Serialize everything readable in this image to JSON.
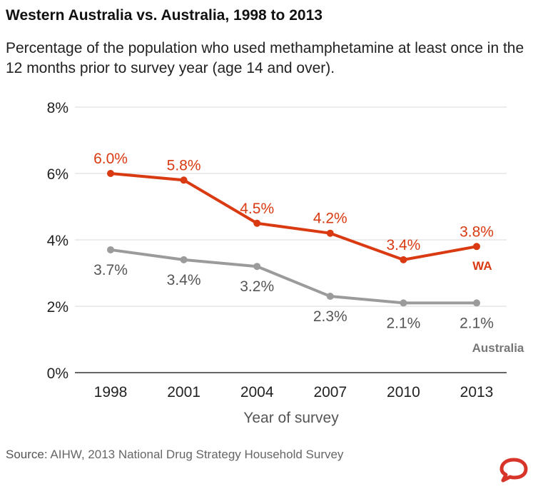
{
  "title": "Western Australia vs. Australia, 1998 to 2013",
  "subtitle": "Percentage of the population who used methamphetamine at least once in the 12 months prior to survey year (age 14 and over).",
  "source": {
    "label": "Source:",
    "text": "AIHW, 2013 National Drug Strategy Household Survey"
  },
  "chart_data": {
    "type": "line",
    "title": "Western Australia vs. Australia, 1998 to 2013",
    "subtitle": "Percentage of the population who used methamphetamine at least once in the 12 months prior to survey year (age 14 and over).",
    "xlabel": "Year of survey",
    "ylabel": "",
    "categories": [
      "1998",
      "2001",
      "2004",
      "2007",
      "2010",
      "2013"
    ],
    "ylim": [
      0,
      8
    ],
    "yticks": [
      0,
      2,
      4,
      6,
      8
    ],
    "ytick_labels": [
      "0%",
      "2%",
      "4%",
      "6%",
      "8%"
    ],
    "grid": true,
    "legend": "direct labels at line ends",
    "series": [
      {
        "name": "WA",
        "color": "#d93a12",
        "values": [
          6.0,
          5.8,
          4.5,
          4.2,
          3.4,
          3.8
        ],
        "labels": [
          "6.0%",
          "5.8%",
          "4.5%",
          "4.2%",
          "3.4%",
          "3.8%"
        ]
      },
      {
        "name": "Australia",
        "color": "#9b9b9b",
        "values": [
          3.7,
          3.4,
          3.2,
          2.3,
          2.1,
          2.1
        ],
        "labels": [
          "3.7%",
          "3.4%",
          "3.2%",
          "2.3%",
          "2.1%",
          "2.1%"
        ]
      }
    ]
  },
  "logo": {
    "name": "the-conversation-logo",
    "color": "#d8352a"
  }
}
